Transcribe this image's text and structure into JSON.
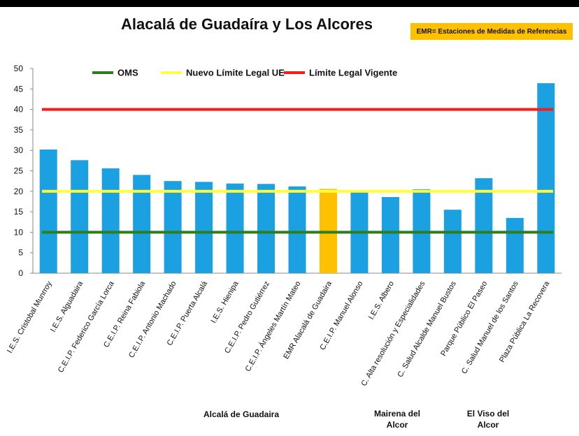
{
  "page": {
    "title": "Alacalá de Guadaíra y Los Alcores",
    "note": "EMR= Estaciones de Medidas de Referencias"
  },
  "groups": [
    {
      "label": "Alcalá de Guadaira"
    },
    {
      "label": "Mairena del Alcor"
    },
    {
      "label": "El Viso del Alcor"
    }
  ],
  "chart_data": {
    "type": "bar",
    "title": "Alacalá de Guadaíra y Los Alcores",
    "xlabel": "",
    "ylabel": "",
    "ylim": [
      0,
      50
    ],
    "yticks": [
      0,
      5,
      10,
      15,
      20,
      25,
      30,
      35,
      40,
      45,
      50
    ],
    "grid": false,
    "legend_position": "top",
    "categories": [
      "I.E.S. Cristobal Munrroy",
      "I.E.S. Alguadaira",
      "C.E.I.P. Federico García Lorca",
      "C.E.I.P. Reina Fabiola",
      "C.E.I.P. Antonio Machado",
      "C.E.I.P. Puerta Alcalá",
      "I.E.S. Hienipa",
      "C.E.I.P. Pedro Gutiérrez",
      "C.E.I.P. Ángeles Martín Mateo",
      "EMR Alacalá de Guadaira",
      "C.E.I.P. Manuel Alonso",
      "I.E.S. Albero",
      "C. Alta resolución y Especialidades",
      "C. Salud Alcalde Manuel Bustos",
      "Parque Público El Paseo",
      "C. Salud Manuel de los Santos",
      "Plaza Pública La Recovera"
    ],
    "values": [
      30.2,
      27.6,
      25.6,
      24.0,
      22.5,
      22.3,
      21.9,
      21.8,
      21.2,
      20.6,
      19.8,
      18.6,
      20.5,
      15.5,
      23.2,
      13.5,
      46.4
    ],
    "bar_color": "#1ba1e2",
    "highlight_index": 9,
    "highlight_color": "#ffc000",
    "reference_lines": [
      {
        "name": "OMS",
        "value": 10,
        "color": "#2e7d1e"
      },
      {
        "name": "Nuevo Límite Legal UE",
        "value": 20,
        "color": "#ffff40"
      },
      {
        "name": "Límite Legal Vigente",
        "value": 40,
        "color": "#ff1a1a"
      }
    ]
  }
}
